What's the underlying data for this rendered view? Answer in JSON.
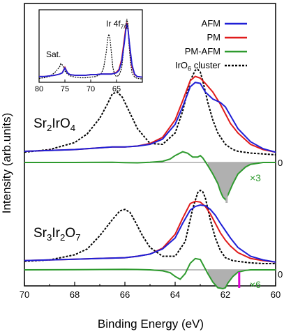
{
  "chart_data": {
    "type": "line",
    "xlabel": "Binding Energy (eV)",
    "ylabel": "Intensity (arb.units)",
    "xlim": [
      70,
      60
    ],
    "x_ticks": [
      70,
      68,
      66,
      64,
      62,
      60
    ],
    "legend": {
      "placement": "top-right",
      "entries": [
        {
          "name": "AFM",
          "color": "#1f1fd6",
          "style": "solid"
        },
        {
          "name": "PM",
          "color": "#e01b1b",
          "style": "solid"
        },
        {
          "name": "PM-AFM",
          "color": "#2e9a2e",
          "style": "solid"
        },
        {
          "name_parts": [
            "IrO",
            "6",
            " cluster"
          ],
          "color": "#000000",
          "style": "dotted"
        }
      ]
    },
    "panels": [
      {
        "label_parts": [
          "Sr",
          "2",
          "IrO",
          "4"
        ],
        "baseline_label": "0",
        "difference_scale": "×3",
        "marker": {
          "x": 61.95,
          "color": "#b0b0b0"
        },
        "series": {
          "AFM": {
            "x": [
              70,
              69,
              68,
              67,
              66.5,
              66,
              65.5,
              65,
              64.5,
              64,
              63.7,
              63.4,
              63.2,
              63.0,
              62.8,
              62.5,
              62.2,
              62.0,
              61.8,
              61.5,
              61,
              60.5,
              60
            ],
            "y": [
              0.04,
              0.05,
              0.06,
              0.08,
              0.09,
              0.09,
              0.1,
              0.12,
              0.18,
              0.35,
              0.55,
              0.78,
              0.83,
              0.82,
              0.72,
              0.64,
              0.6,
              0.55,
              0.45,
              0.3,
              0.15,
              0.07,
              0.03
            ]
          },
          "PM": {
            "x": [
              70,
              69,
              68,
              67,
              66.5,
              66,
              65.5,
              65,
              64.5,
              64,
              63.7,
              63.4,
              63.2,
              63.0,
              62.8,
              62.5,
              62.2,
              62.0,
              61.8,
              61.5,
              61,
              60.5,
              60
            ],
            "y": [
              0.04,
              0.05,
              0.06,
              0.08,
              0.09,
              0.09,
              0.1,
              0.13,
              0.2,
              0.4,
              0.62,
              0.85,
              0.9,
              0.88,
              0.82,
              0.72,
              0.58,
              0.47,
              0.36,
              0.25,
              0.12,
              0.06,
              0.03
            ]
          },
          "PM-AFM": {
            "x": [
              70,
              68,
              66.5,
              66,
              65.5,
              65,
              64.5,
              64.2,
              64,
              63.7,
              63.5,
              63.3,
              63.1,
              63.0,
              62.9,
              62.7,
              62.5,
              62.3,
              62.2,
              62.1,
              62.0,
              61.9,
              61.7,
              61.5,
              61.2,
              61,
              60.5,
              60
            ],
            "y": [
              0,
              0,
              0.005,
              -0.005,
              -0.01,
              0.005,
              0.03,
              0.09,
              0.18,
              0.28,
              0.24,
              0.14,
              0.14,
              0.18,
              0.12,
              -0.08,
              -0.3,
              -0.55,
              -0.75,
              -0.9,
              -0.97,
              -0.85,
              -0.55,
              -0.3,
              -0.12,
              -0.05,
              0,
              0
            ]
          },
          "IrO6 cluster": {
            "x": [
              70,
              69,
              68,
              67.5,
              67,
              66.7,
              66.5,
              66.3,
              66.1,
              65.8,
              65.5,
              65,
              64.5,
              64,
              63.7,
              63.4,
              63.2,
              63.1,
              63.0,
              62.9,
              62.7,
              62.5,
              62.3,
              62.0,
              61.7,
              61.5,
              61,
              60.5,
              60
            ],
            "y": [
              0.03,
              0.06,
              0.14,
              0.24,
              0.42,
              0.58,
              0.7,
              0.72,
              0.66,
              0.48,
              0.3,
              0.13,
              0.12,
              0.25,
              0.5,
              0.85,
              0.97,
              0.98,
              0.95,
              0.85,
              0.6,
              0.4,
              0.25,
              0.12,
              0.06,
              0.04,
              0.02,
              0.01,
              0
            ]
          }
        }
      },
      {
        "label_parts": [
          "Sr",
          "3",
          "Ir",
          "2",
          "O",
          "7"
        ],
        "baseline_label": "0",
        "difference_scale": "×6",
        "marker": {
          "x": 61.45,
          "color": "#e000d6"
        },
        "series": {
          "AFM": {
            "x": [
              70,
              69,
              68,
              67,
              66,
              65.5,
              65,
              64.5,
              64,
              63.7,
              63.4,
              63.2,
              63.0,
              62.8,
              62.6,
              62.4,
              62.2,
              62.0,
              61.8,
              61.5,
              61,
              60.5,
              60
            ],
            "y": [
              0.04,
              0.05,
              0.06,
              0.07,
              0.08,
              0.1,
              0.13,
              0.2,
              0.35,
              0.55,
              0.73,
              0.78,
              0.8,
              0.79,
              0.74,
              0.66,
              0.55,
              0.45,
              0.35,
              0.22,
              0.1,
              0.05,
              0.02
            ]
          },
          "PM": {
            "x": [
              70,
              69,
              68,
              67,
              66,
              65.5,
              65,
              64.5,
              64,
              63.7,
              63.4,
              63.2,
              63.0,
              62.8,
              62.6,
              62.4,
              62.2,
              62.0,
              61.8,
              61.5,
              61,
              60.5,
              60
            ],
            "y": [
              0.04,
              0.05,
              0.06,
              0.07,
              0.08,
              0.1,
              0.13,
              0.21,
              0.4,
              0.62,
              0.82,
              0.85,
              0.84,
              0.78,
              0.68,
              0.55,
              0.42,
              0.32,
              0.24,
              0.15,
              0.07,
              0.04,
              0.02
            ]
          },
          "PM-AFM": {
            "x": [
              70,
              68,
              66,
              65.5,
              65,
              64.5,
              64.2,
              64,
              63.8,
              63.6,
              63.4,
              63.2,
              63.0,
              62.9,
              62.7,
              62.5,
              62.3,
              62.1,
              62.0,
              61.9,
              61.7,
              61.5,
              61.2,
              61,
              60.5,
              60
            ],
            "y": [
              0,
              0.01,
              0.03,
              0.02,
              0,
              -0.05,
              -0.15,
              -0.35,
              -0.5,
              -0.2,
              0.35,
              0.6,
              0.55,
              0.3,
              -0.2,
              -0.65,
              -0.95,
              -1.0,
              -0.95,
              -0.7,
              -0.35,
              -0.12,
              -0.03,
              0,
              0,
              0
            ]
          },
          "IrO6 cluster": {
            "x": [
              70,
              69,
              68,
              67.5,
              67,
              66.5,
              66.2,
              66.0,
              65.8,
              65.6,
              65.3,
              65,
              64.5,
              64,
              63.6,
              63.3,
              63.1,
              63.0,
              62.9,
              62.8,
              62.6,
              62.4,
              62.2,
              62.0,
              61.7,
              61.5,
              61,
              60.5,
              60
            ],
            "y": [
              0.03,
              0.05,
              0.12,
              0.2,
              0.38,
              0.6,
              0.72,
              0.74,
              0.7,
              0.58,
              0.38,
              0.22,
              0.1,
              0.1,
              0.3,
              0.75,
              0.97,
              1.0,
              0.98,
              0.9,
              0.6,
              0.35,
              0.18,
              0.08,
              0.04,
              0.03,
              0.01,
              0,
              0
            ]
          }
        }
      }
    ],
    "inset": {
      "xlim": [
        80,
        60
      ],
      "x_ticks": [
        80,
        75,
        70,
        65
      ],
      "annotations": [
        {
          "text": "Sat."
        },
        {
          "text_parts": [
            "Ir 4f",
            "7/2"
          ]
        }
      ],
      "series": {
        "AFM": {
          "x": [
            80,
            79,
            78,
            77,
            76,
            75.5,
            75,
            74.5,
            74,
            73,
            72,
            71,
            70,
            69,
            68,
            67,
            66,
            65,
            64.5,
            64,
            63.5,
            63.2,
            63.0,
            62.8,
            62.5,
            62,
            61.5,
            61,
            60
          ],
          "y": [
            0.06,
            0.06,
            0.07,
            0.08,
            0.1,
            0.12,
            0.2,
            0.12,
            0.09,
            0.08,
            0.08,
            0.08,
            0.09,
            0.09,
            0.1,
            0.1,
            0.1,
            0.12,
            0.16,
            0.3,
            0.6,
            0.82,
            0.9,
            0.85,
            0.6,
            0.25,
            0.1,
            0.06,
            0.05
          ]
        },
        "PM": {
          "x": [
            80,
            79,
            78,
            77,
            76,
            75.5,
            75,
            74.5,
            74,
            73,
            72,
            71,
            70,
            69,
            68,
            67,
            66,
            65,
            64.5,
            64,
            63.5,
            63.2,
            63.0,
            62.8,
            62.5,
            62,
            61.5,
            61,
            60
          ],
          "y": [
            0.06,
            0.06,
            0.07,
            0.08,
            0.1,
            0.12,
            0.21,
            0.12,
            0.09,
            0.08,
            0.08,
            0.08,
            0.09,
            0.09,
            0.1,
            0.1,
            0.1,
            0.13,
            0.18,
            0.34,
            0.66,
            0.86,
            0.92,
            0.86,
            0.58,
            0.22,
            0.09,
            0.06,
            0.05
          ]
        },
        "IrO6 cluster": {
          "x": [
            80,
            79,
            78,
            77,
            76,
            75.8,
            75.5,
            75.2,
            75,
            74.5,
            74,
            73,
            72,
            71,
            70,
            69,
            68,
            67.5,
            67,
            66.7,
            66.5,
            66.3,
            66,
            65.7,
            65.3,
            65,
            64.5,
            64,
            63.5,
            63.2,
            63.0,
            62.8,
            62.6,
            62.3,
            62,
            61.5,
            61,
            60
          ],
          "y": [
            0.03,
            0.04,
            0.06,
            0.12,
            0.22,
            0.27,
            0.25,
            0.2,
            0.15,
            0.1,
            0.07,
            0.05,
            0.04,
            0.04,
            0.05,
            0.06,
            0.1,
            0.2,
            0.45,
            0.68,
            0.75,
            0.7,
            0.45,
            0.2,
            0.08,
            0.06,
            0.08,
            0.2,
            0.6,
            0.9,
            1.0,
            0.92,
            0.6,
            0.3,
            0.12,
            0.05,
            0.03,
            0.02
          ]
        }
      }
    }
  }
}
